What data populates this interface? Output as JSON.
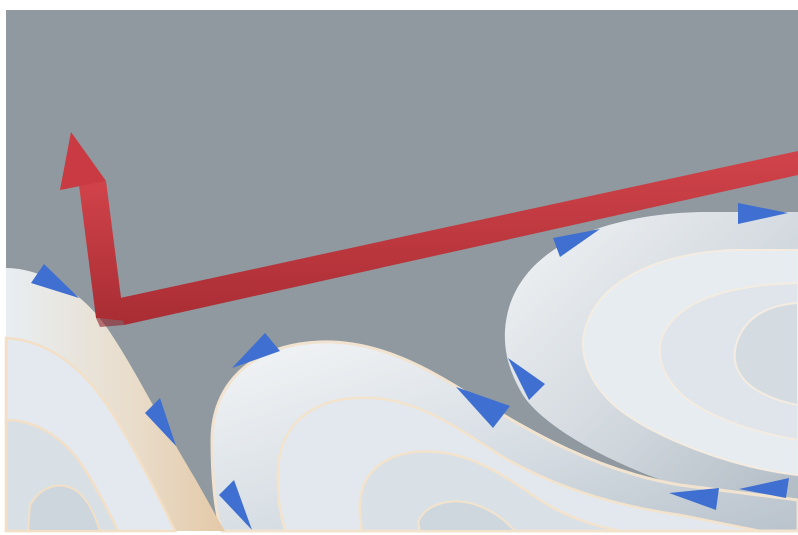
{
  "scene": {
    "background_color": "#8f999f",
    "frame_color": "#ffffff",
    "surface_light_color": "#eef1f3",
    "surface_mid_color": "#c9d1d8",
    "surface_warm_color": "#e7d2b8",
    "terrace_edge_color": "#f6e6cf",
    "arrow_color": "#c0343c",
    "arrow_shadow_color": "#8f2128",
    "marker_color": "#3f6fd0",
    "arrow_icon": "red-axis-arrow-icon",
    "marker_icon": "blue-triangle-marker-icon"
  }
}
